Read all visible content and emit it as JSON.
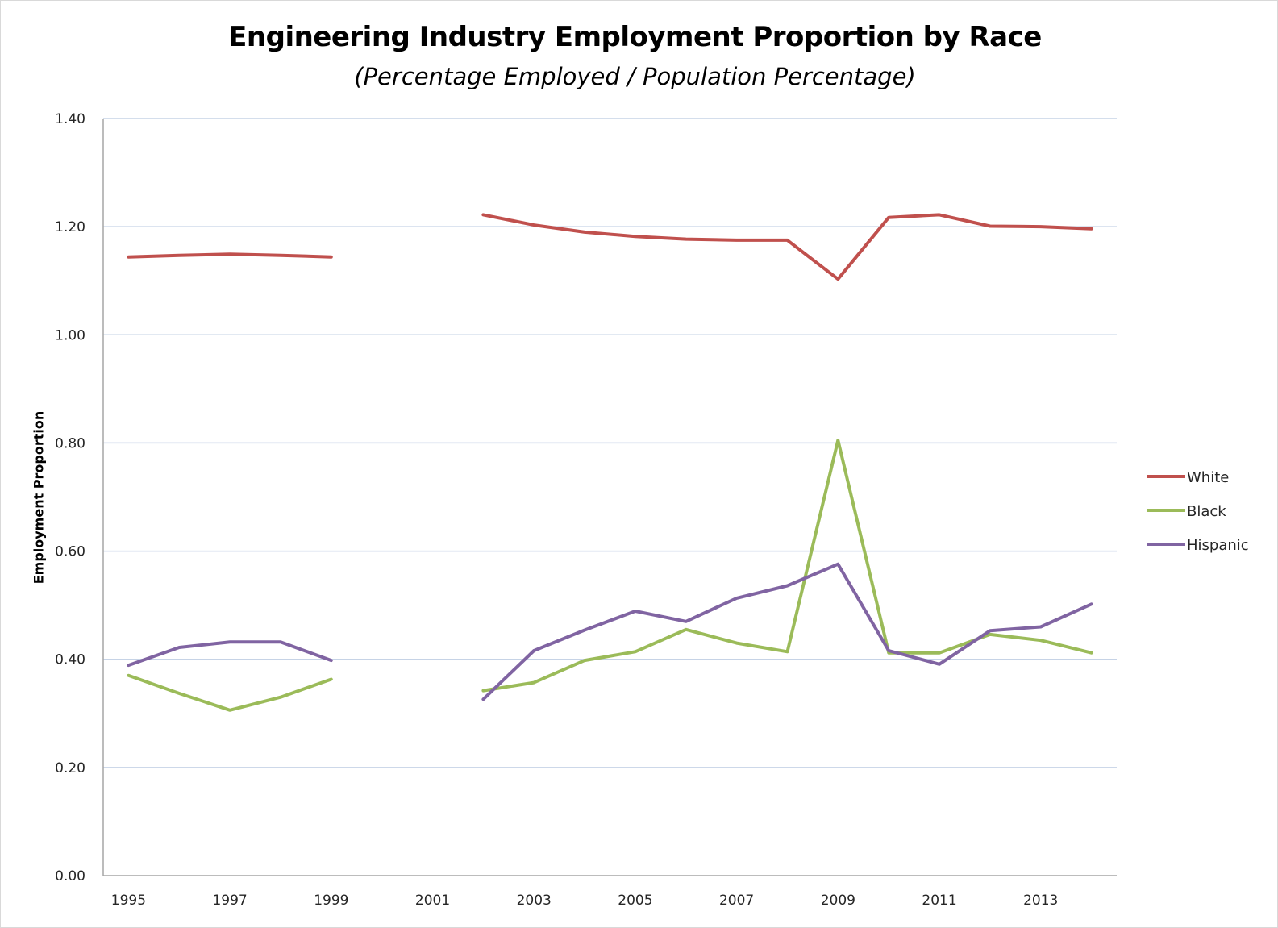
{
  "chart_data": {
    "type": "line",
    "title": "Engineering Industry Employment Proportion by Race",
    "subtitle": "(Percentage Employed / Population Percentage)",
    "xlabel": "",
    "ylabel": "Employment Proportion",
    "x": [
      1995,
      1996,
      1997,
      1998,
      1999,
      2000,
      2001,
      2002,
      2003,
      2004,
      2005,
      2006,
      2007,
      2008,
      2009,
      2010,
      2011,
      2012,
      2013,
      2014
    ],
    "x_tick_labels": [
      "1995",
      "1997",
      "1999",
      "2001",
      "2003",
      "2005",
      "2007",
      "2009",
      "2011",
      "2013"
    ],
    "y_tick_labels": [
      "0.00",
      "0.20",
      "0.40",
      "0.60",
      "0.80",
      "1.00",
      "1.20",
      "1.40"
    ],
    "ylim": [
      0,
      1.4
    ],
    "grid": "horizontal",
    "legend_position": "right",
    "series": [
      {
        "name": "White",
        "color": "#c0504d",
        "values": [
          1.144,
          1.147,
          1.149,
          1.147,
          1.144,
          null,
          null,
          1.222,
          1.203,
          1.19,
          1.182,
          1.177,
          1.175,
          1.175,
          1.103,
          1.217,
          1.222,
          1.201,
          1.2,
          1.196
        ]
      },
      {
        "name": "Black",
        "color": "#9bbb59",
        "values": [
          0.37,
          0.337,
          0.306,
          0.33,
          0.363,
          null,
          null,
          0.342,
          0.357,
          0.398,
          0.414,
          0.455,
          0.43,
          0.414,
          0.805,
          0.412,
          0.412,
          0.446,
          0.435,
          0.412
        ]
      },
      {
        "name": "Hispanic",
        "color": "#8064a2",
        "values": [
          0.389,
          0.422,
          0.432,
          0.432,
          0.398,
          null,
          null,
          0.326,
          0.416,
          0.454,
          0.489,
          0.47,
          0.513,
          0.536,
          0.576,
          0.416,
          0.391,
          0.453,
          0.46,
          0.502
        ]
      }
    ]
  }
}
